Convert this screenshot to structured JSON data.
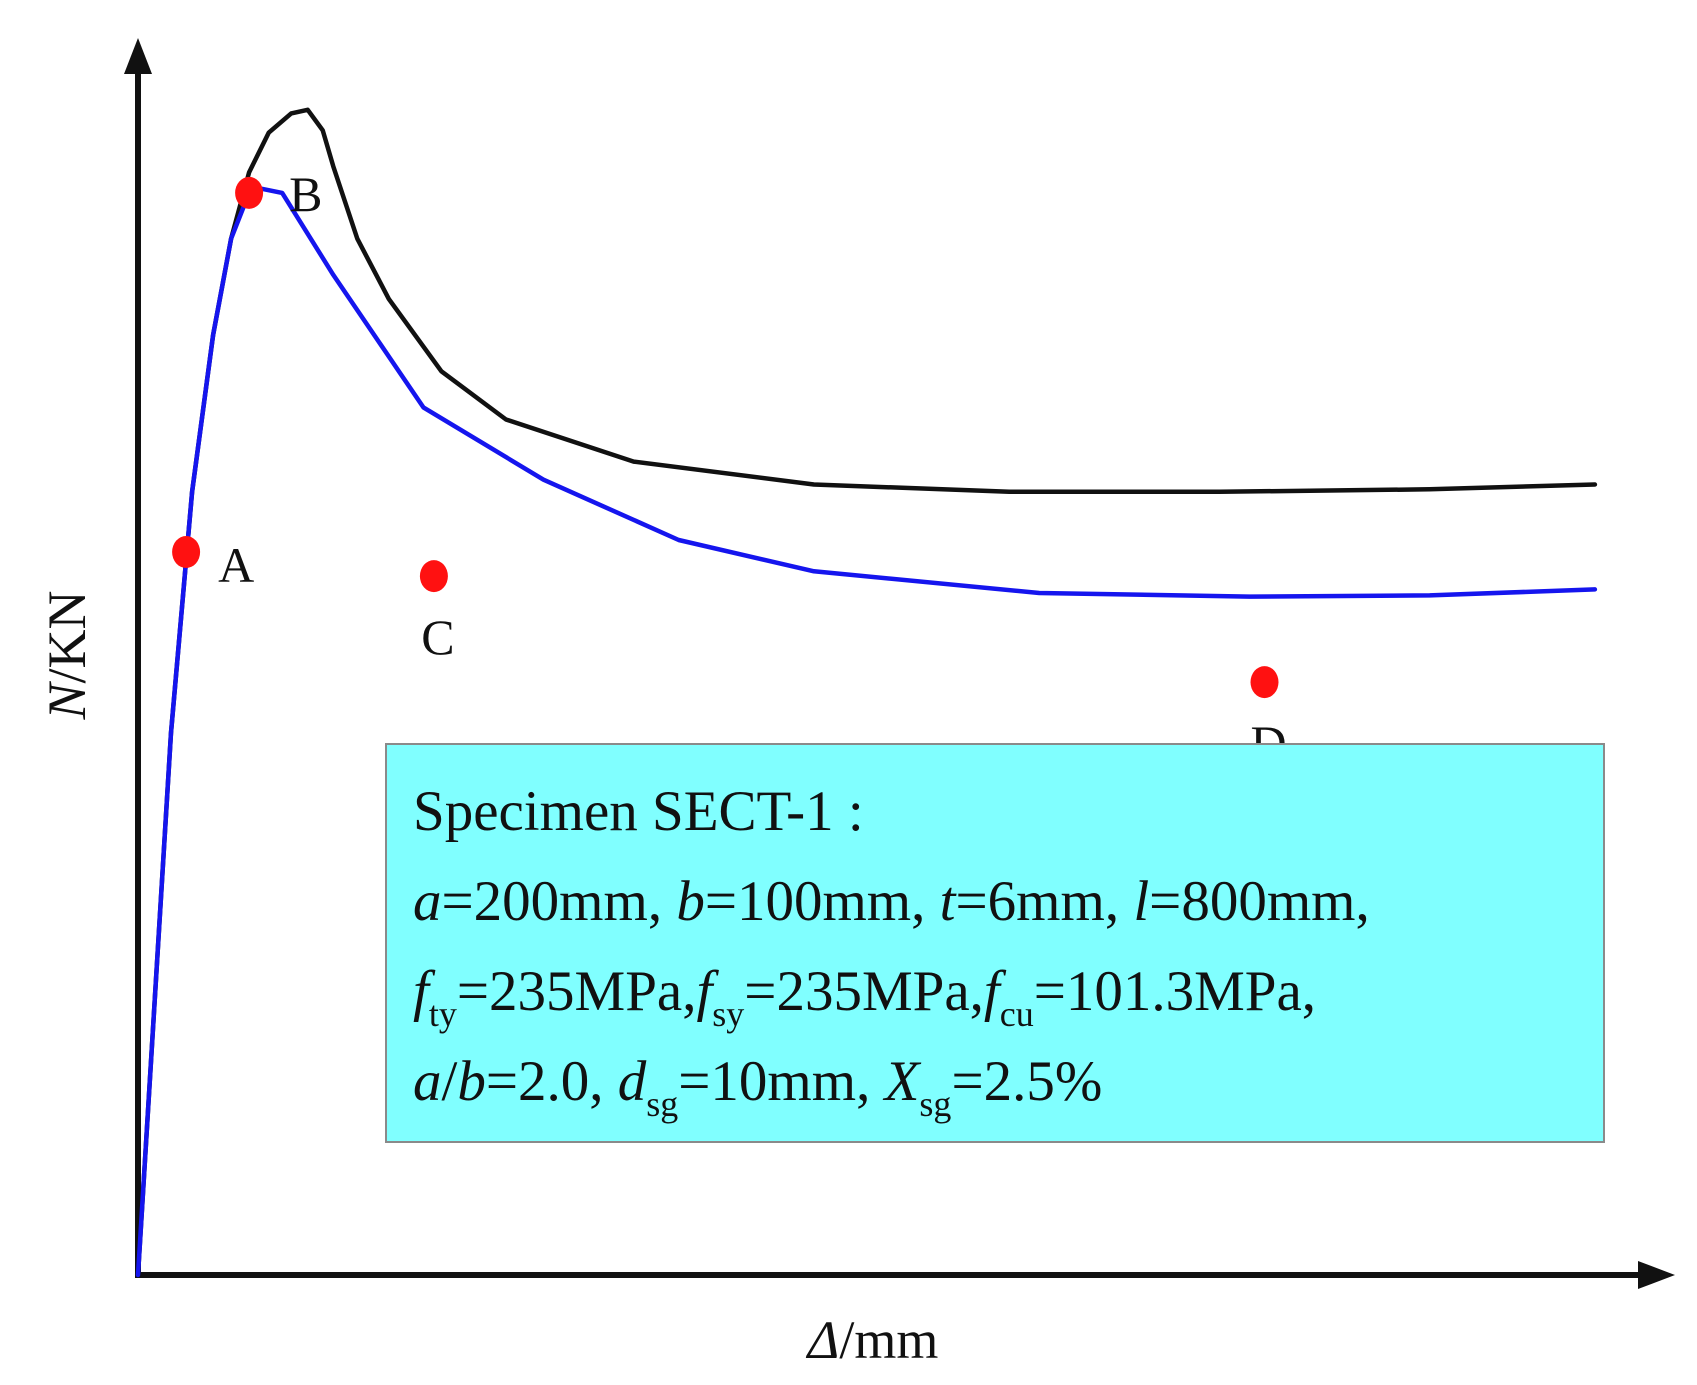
{
  "chart_data": {
    "type": "line",
    "title": "",
    "xlabel": "Δ/mm",
    "ylabel": "N/KN",
    "xlabel_parts": {
      "var": "Δ",
      "unit": "/mm"
    },
    "ylabel_parts": {
      "var": "N",
      "unit": "/KN"
    },
    "xlim": [
      0,
      100
    ],
    "ylim": [
      0,
      100
    ],
    "grid": false,
    "axis_ticks": "none",
    "series": [
      {
        "name": "upper curve",
        "color": "#111111",
        "x": [
          0,
          2.2,
          3.6,
          5.0,
          6.2,
          7.4,
          8.7,
          10.2,
          11.3,
          12.3,
          13.0,
          14.6,
          16.7,
          20.2,
          24.5,
          33.0,
          45.0,
          58.0,
          72.0,
          86.0,
          97.0
        ],
        "y": [
          0,
          45,
          65,
          78,
          86,
          91.5,
          94.8,
          96.4,
          96.7,
          95.0,
          92.0,
          86.0,
          81.0,
          75.0,
          71.0,
          67.5,
          65.6,
          65.0,
          65.0,
          65.2,
          65.6
        ]
      },
      {
        "name": "lower curve",
        "color": "#1515ee",
        "x": [
          0,
          2.2,
          3.6,
          5.0,
          6.2,
          7.4,
          8.0,
          9.6,
          13.0,
          19.0,
          27.0,
          36.0,
          45.0,
          60.0,
          74.0,
          86.0,
          97.0
        ],
        "y": [
          0,
          45,
          65,
          78,
          86,
          89.8,
          90.2,
          89.8,
          83.0,
          72.0,
          66.0,
          61.0,
          58.4,
          56.6,
          56.3,
          56.4,
          56.9
        ]
      }
    ],
    "points": [
      {
        "label": "A",
        "series": "lower curve",
        "x": 3.2,
        "y": 60.0,
        "label_pos": "below-right",
        "color": "#ff1111"
      },
      {
        "label": "B",
        "series": "lower curve",
        "x": 7.4,
        "y": 89.8,
        "label_pos": "right",
        "color": "#ff1111"
      },
      {
        "label": "C",
        "series": "lower curve",
        "x": 19.7,
        "y": 58.0,
        "label_pos": "below",
        "color": "#ff1111"
      },
      {
        "label": "D",
        "series": "lower curve",
        "x": 75.0,
        "y": 49.2,
        "label_pos": "below",
        "color": "#ff1111"
      }
    ],
    "annotation": {
      "placement": "center-right",
      "background": "#80ffff",
      "header": "Specimen SECT-1 :",
      "params": [
        [
          {
            "var": "a",
            "val": "=200mm, "
          },
          {
            "var": "b",
            "val": "=100mm, "
          },
          {
            "var": "t",
            "val": "=6mm, "
          },
          {
            "var": "l",
            "val": "=800mm,"
          }
        ],
        [
          {
            "var": "f",
            "sub": "ty",
            "val": "=235MPa,"
          },
          {
            "var": "f",
            "sub": "sy",
            "val": "=235MPa,"
          },
          {
            "var": "f",
            "sub": "cu",
            "val": "=101.3MPa,"
          }
        ],
        [
          {
            "var": "a",
            "val": "/"
          },
          {
            "var": "b",
            "val": "=2.0, "
          },
          {
            "var": "d",
            "sub": "sg",
            "val": "=10mm, "
          },
          {
            "var": "X",
            "sub": "sg",
            "val": "=2.5%"
          }
        ]
      ]
    }
  }
}
